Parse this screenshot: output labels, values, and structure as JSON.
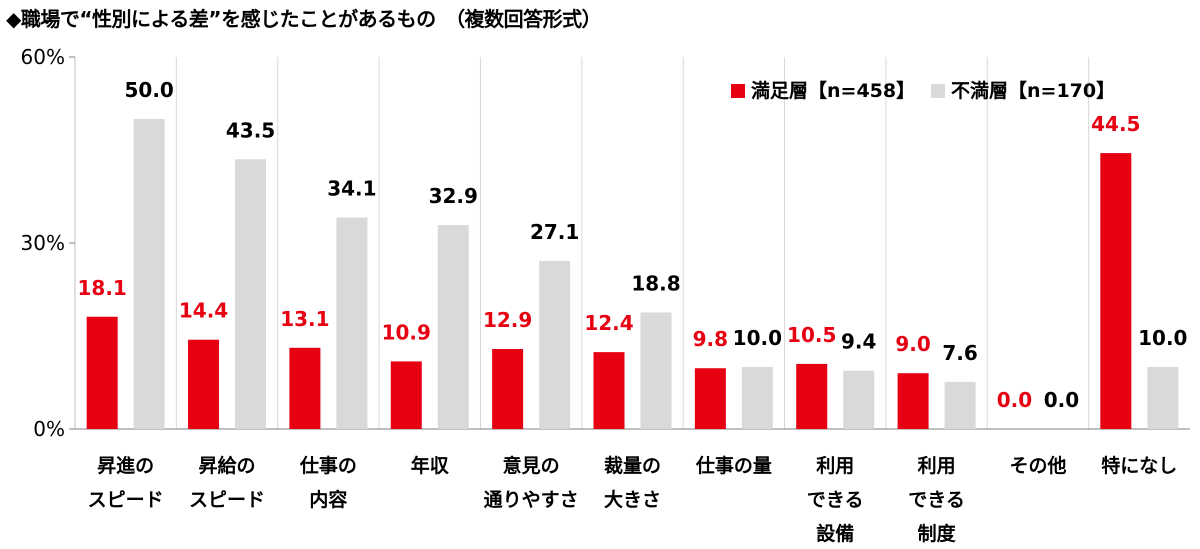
{
  "title": "◆職場で“性別による差”を感じたことがあるもの　（複数回答形式）",
  "chart_data": {
    "type": "bar",
    "categories": [
      [
        "昇進の",
        "スピード"
      ],
      [
        "昇給の",
        "スピード"
      ],
      [
        "仕事の",
        "内容"
      ],
      [
        "年収"
      ],
      [
        "意見の",
        "通りやすさ"
      ],
      [
        "裁量の",
        "大きさ"
      ],
      [
        "仕事の量"
      ],
      [
        "利用",
        "できる",
        "設備"
      ],
      [
        "利用",
        "できる",
        "制度"
      ],
      [
        "その他"
      ],
      [
        "特になし"
      ]
    ],
    "series": [
      {
        "name": "満足層【n=458】",
        "color": "#e60012",
        "label_color": "#e60012",
        "values": [
          18.1,
          14.4,
          13.1,
          10.9,
          12.9,
          12.4,
          9.8,
          10.5,
          9.0,
          0.0,
          44.5
        ],
        "labels": [
          "18.1",
          "14.4",
          "13.1",
          "10.9",
          "12.9",
          "12.4",
          "9.8",
          "10.5",
          "9.0",
          "0.0",
          "44.5"
        ]
      },
      {
        "name": "不満層【n=170】",
        "color": "#d9d9d9",
        "label_color": "#000000",
        "values": [
          50.0,
          43.5,
          34.1,
          32.9,
          27.1,
          18.8,
          10.0,
          9.4,
          7.6,
          0.0,
          10.0
        ],
        "labels": [
          "50.0",
          "43.5",
          "34.1",
          "32.9",
          "27.1",
          "18.8",
          "10.0",
          "9.4",
          "7.6",
          "0.0",
          "10.0"
        ]
      }
    ],
    "ylim": [
      0,
      60
    ],
    "yticks": [
      0,
      30,
      60
    ],
    "ytick_labels": [
      "0%",
      "30%",
      "60%"
    ],
    "grid": "vertical category separators",
    "legend": "top-right"
  }
}
